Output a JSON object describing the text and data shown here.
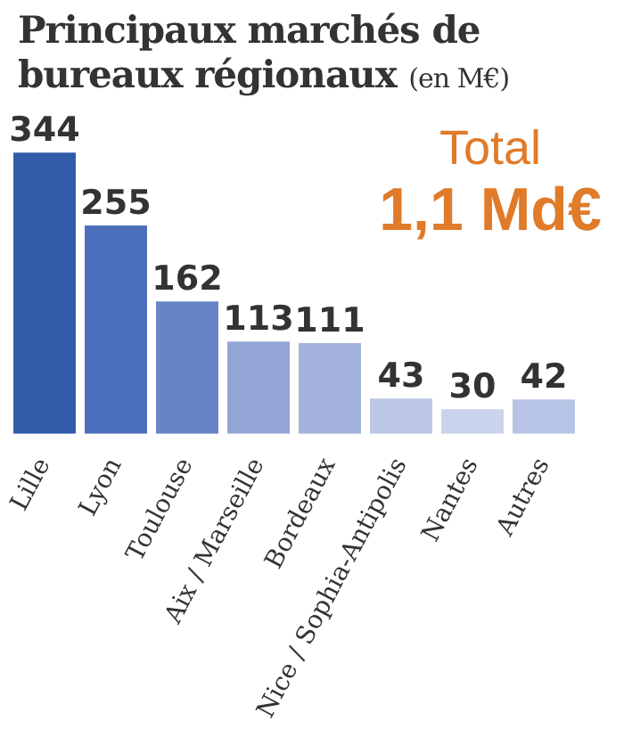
{
  "chart_data": {
    "type": "bar",
    "title": "Principaux marchés de bureaux régionaux",
    "subtitle": "(en M€)",
    "categories": [
      "Lille",
      "Lyon",
      "Toulouse",
      "Aix / Marseille",
      "Bordeaux",
      "Nice / Sophia-Antipolis",
      "Nantes",
      "Autres"
    ],
    "values": [
      344,
      255,
      162,
      113,
      111,
      43,
      30,
      42
    ],
    "colors": [
      "#2f5ba8",
      "#4b6fba",
      "#6784c6",
      "#93a6d6",
      "#a2b2dc",
      "#bcc7e6",
      "#cad3ec",
      "#b8c4e5"
    ],
    "annotations": [
      "Total",
      "1,1 Md€"
    ],
    "data_labels": true,
    "grid": false,
    "legend": false
  }
}
